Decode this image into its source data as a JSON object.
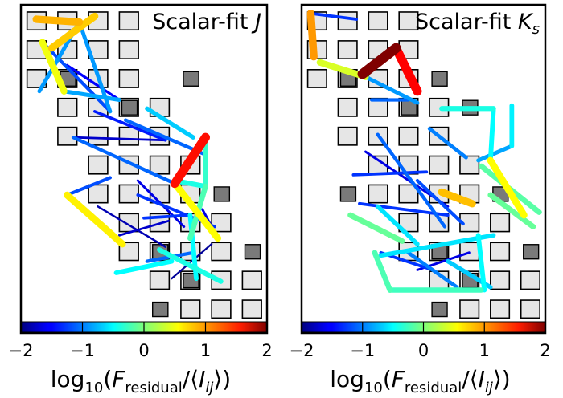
{
  "chart_data": [
    {
      "type": "network",
      "title": "Scalar-fit J",
      "title_plain": "Scalar-fit ",
      "title_var": "J",
      "title_sub": "",
      "colormap": "jet",
      "colorbar": {
        "range": [
          -2,
          2
        ],
        "ticks": [
          -2,
          -1,
          0,
          1,
          2
        ],
        "tick_labels": [
          "−2",
          "−1",
          "0",
          "1",
          "2"
        ]
      },
      "xlabel": "log10(Fresidual/⟨Iij⟩)",
      "highlighted_cells": [
        [
          2,
          1
        ],
        [
          3,
          3
        ],
        [
          2,
          5
        ],
        [
          6,
          6
        ],
        [
          8,
          4
        ],
        [
          9,
          5
        ],
        [
          10,
          4
        ],
        [
          11,
          3
        ],
        [
          8,
          7
        ],
        [
          9,
          9
        ],
        [
          7,
          11
        ]
      ],
      "edges": [
        {
          "from": [
            0.5,
            0.5
          ],
          "to": [
            1.9,
            0.6
          ],
          "value": 0.8
        },
        {
          "from": [
            1.0,
            1.5
          ],
          "to": [
            2.4,
            0.4
          ],
          "value": 0.7
        },
        {
          "from": [
            0.7,
            1.3
          ],
          "to": [
            1.4,
            3.0
          ],
          "value": 0.45
        },
        {
          "from": [
            0.6,
            3.0
          ],
          "to": [
            1.9,
            0.6
          ],
          "value": -0.9
        },
        {
          "from": [
            1.9,
            0.6
          ],
          "to": [
            2.9,
            3.7
          ],
          "value": -0.9
        },
        {
          "from": [
            0.7,
            1.3
          ],
          "to": [
            2.9,
            3.7
          ],
          "value": -1.2
        },
        {
          "from": [
            1.4,
            3.0
          ],
          "to": [
            3.2,
            3.3
          ],
          "value": -0.85
        },
        {
          "from": [
            1.5,
            2.1
          ],
          "to": [
            3.2,
            3.3
          ],
          "value": -1.5
        },
        {
          "from": [
            2.4,
            3.7
          ],
          "to": [
            4.7,
            4.7
          ],
          "value": -1.4
        },
        {
          "from": [
            3.4,
            4.0
          ],
          "to": [
            6.0,
            5.2
          ],
          "value": -1.1
        },
        {
          "from": [
            4.1,
            3.6
          ],
          "to": [
            5.6,
            4.6
          ],
          "value": -0.7
        },
        {
          "from": [
            6.0,
            4.6
          ],
          "to": [
            6.0,
            6.3
          ],
          "value": -0.3
        },
        {
          "from": [
            6.0,
            4.6
          ],
          "to": [
            5.0,
            6.2
          ],
          "value": 1.45
        },
        {
          "from": [
            6.0,
            6.3
          ],
          "to": [
            5.0,
            6.1
          ],
          "value": -0.4
        },
        {
          "from": [
            6.0,
            6.3
          ],
          "to": [
            5.5,
            8.1
          ],
          "value": -0.2
        },
        {
          "from": [
            5.0,
            6.2
          ],
          "to": [
            6.4,
            8.1
          ],
          "value": 0.5
        },
        {
          "from": [
            6.4,
            8.1
          ],
          "to": [
            5.9,
            7.1
          ],
          "value": -1.6
        },
        {
          "from": [
            1.7,
            4.6
          ],
          "to": [
            5.0,
            6.2
          ],
          "value": -1.1
        },
        {
          "from": [
            1.7,
            4.6
          ],
          "to": [
            4.7,
            4.7
          ],
          "value": -1.7
        },
        {
          "from": [
            3.8,
            6.1
          ],
          "to": [
            5.3,
            7.7
          ],
          "value": -1.6
        },
        {
          "from": [
            3.8,
            6.6
          ],
          "to": [
            6.3,
            7.7
          ],
          "value": -1.3
        },
        {
          "from": [
            1.5,
            6.6
          ],
          "to": [
            3.3,
            8.3
          ],
          "value": 0.55
        },
        {
          "from": [
            1.5,
            6.6
          ],
          "to": [
            2.9,
            6.0
          ],
          "value": -1.2
        },
        {
          "from": [
            3.1,
            9.3
          ],
          "to": [
            4.9,
            8.9
          ],
          "value": -0.5
        },
        {
          "from": [
            4.9,
            9.5
          ],
          "to": [
            6.2,
            8.3
          ],
          "value": -1.9
        },
        {
          "from": [
            4.0,
            7.4
          ],
          "to": [
            5.5,
            7.3
          ],
          "value": -1.3
        },
        {
          "from": [
            3.2,
            8.0
          ],
          "to": [
            4.8,
            7.5
          ],
          "value": -1.7
        },
        {
          "from": [
            4.1,
            8.9
          ],
          "to": [
            5.6,
            8.6
          ],
          "value": -1.1
        },
        {
          "from": [
            5.5,
            7.3
          ],
          "to": [
            5.7,
            9.5
          ],
          "value": -0.5
        },
        {
          "from": [
            4.5,
            8.5
          ],
          "to": [
            6.5,
            9.6
          ],
          "value": -0.4
        },
        {
          "from": [
            2.5,
            7.0
          ],
          "to": [
            4.7,
            8.4
          ],
          "value": -1.8
        }
      ]
    },
    {
      "type": "network",
      "title": "Scalar-fit Ks",
      "title_plain": "Scalar-fit ",
      "title_var": "K",
      "title_sub": "s",
      "colormap": "jet",
      "colorbar": {
        "range": [
          -2,
          2
        ],
        "ticks": [
          -2,
          -1,
          0,
          1,
          2
        ],
        "tick_labels": [
          "−2",
          "−1",
          "0",
          "1",
          "2"
        ]
      },
      "xlabel": "log10(Fresidual/⟨Iij⟩)",
      "highlighted_cells": [
        [
          2,
          1
        ],
        [
          6,
          1
        ],
        [
          3,
          3
        ],
        [
          2,
          4
        ],
        [
          3,
          5
        ],
        [
          6,
          6
        ],
        [
          8,
          4
        ],
        [
          9,
          5
        ],
        [
          10,
          4
        ],
        [
          11,
          3
        ],
        [
          8,
          7
        ],
        [
          9,
          9
        ],
        [
          7,
          11
        ]
      ],
      "edges": [
        {
          "from": [
            0.3,
            0.3
          ],
          "to": [
            0.4,
            1.8
          ],
          "value": 0.9
        },
        {
          "from": [
            0.3,
            0.3
          ],
          "to": [
            1.8,
            0.5
          ],
          "value": -1.3
        },
        {
          "from": [
            0.6,
            2.0
          ],
          "to": [
            2.1,
            2.5
          ],
          "value": 0.35
        },
        {
          "from": [
            2.0,
            2.4
          ],
          "to": [
            3.1,
            1.5
          ],
          "value": 2.0
        },
        {
          "from": [
            3.1,
            1.5
          ],
          "to": [
            3.8,
            3.0
          ],
          "value": 1.5
        },
        {
          "from": [
            2.1,
            2.5
          ],
          "to": [
            3.8,
            3.4
          ],
          "value": -0.9
        },
        {
          "from": [
            2.3,
            3.3
          ],
          "to": [
            3.5,
            3.3
          ],
          "value": -1.1
        },
        {
          "from": [
            4.6,
            3.6
          ],
          "to": [
            6.3,
            3.6
          ],
          "value": -0.4
        },
        {
          "from": [
            6.3,
            3.6
          ],
          "to": [
            6.2,
            5.4
          ],
          "value": -0.5
        },
        {
          "from": [
            5.8,
            5.4
          ],
          "to": [
            6.9,
            4.9
          ],
          "value": -0.85
        },
        {
          "from": [
            6.9,
            3.5
          ],
          "to": [
            6.9,
            4.9
          ],
          "value": -0.55
        },
        {
          "from": [
            4.2,
            4.3
          ],
          "to": [
            5.4,
            5.3
          ],
          "value": -1.0
        },
        {
          "from": [
            6.2,
            5.4
          ],
          "to": [
            7.3,
            7.3
          ],
          "value": 0.5
        },
        {
          "from": [
            4.6,
            6.5
          ],
          "to": [
            5.6,
            6.9
          ],
          "value": 0.75
        },
        {
          "from": [
            6.2,
            6.6
          ],
          "to": [
            7.6,
            7.7
          ],
          "value": -0.1
        },
        {
          "from": [
            5.9,
            5.6
          ],
          "to": [
            7.8,
            7.2
          ],
          "value": -0.15
        },
        {
          "from": [
            2.5,
            4.5
          ],
          "to": [
            4.7,
            7.7
          ],
          "value": -1.1
        },
        {
          "from": [
            2.1,
            5.1
          ],
          "to": [
            4.8,
            7.0
          ],
          "value": -1.6
        },
        {
          "from": [
            3.8,
            6.1
          ],
          "to": [
            5.3,
            7.6
          ],
          "value": -1.2
        },
        {
          "from": [
            1.9,
            6.9
          ],
          "to": [
            4.8,
            7.3
          ],
          "value": -1.3
        },
        {
          "from": [
            1.7,
            5.9
          ],
          "to": [
            4.1,
            5.8
          ],
          "value": -1.3
        },
        {
          "from": [
            1.6,
            7.3
          ],
          "to": [
            3.3,
            8.2
          ],
          "value": -0.1
        },
        {
          "from": [
            2.5,
            7.0
          ],
          "to": [
            3.8,
            8.3
          ],
          "value": -0.6
        },
        {
          "from": [
            2.6,
            8.7
          ],
          "to": [
            6.3,
            8.0
          ],
          "value": -0.6
        },
        {
          "from": [
            2.4,
            8.6
          ],
          "to": [
            2.9,
            9.9
          ],
          "value": -0.2
        },
        {
          "from": [
            2.9,
            9.9
          ],
          "to": [
            5.9,
            9.9
          ],
          "value": -0.25
        },
        {
          "from": [
            3.5,
            8.6
          ],
          "to": [
            5.1,
            9.8
          ],
          "value": -1.0
        },
        {
          "from": [
            3.8,
            9.2
          ],
          "to": [
            5.5,
            8.6
          ],
          "value": -1.6
        },
        {
          "from": [
            4.8,
            8.9
          ],
          "to": [
            6.2,
            9.8
          ],
          "value": -0.7
        },
        {
          "from": [
            2.6,
            8.6
          ],
          "to": [
            4.3,
            9.2
          ],
          "value": -1.3
        },
        {
          "from": [
            5.8,
            8.0
          ],
          "to": [
            6.0,
            9.9
          ],
          "value": -0.5
        }
      ]
    }
  ]
}
